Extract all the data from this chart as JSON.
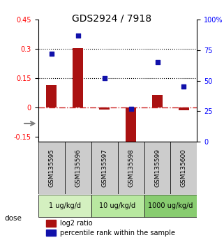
{
  "title": "GDS2924 / 7918",
  "samples": [
    "GSM135595",
    "GSM135596",
    "GSM135597",
    "GSM135598",
    "GSM135599",
    "GSM135600"
  ],
  "log2_ratio": [
    0.115,
    0.305,
    -0.01,
    -0.175,
    0.065,
    -0.015
  ],
  "percentile_rank": [
    72,
    87,
    52,
    27,
    65,
    45
  ],
  "dose_groups": [
    {
      "label": "1 ug/kg/d",
      "samples": [
        0,
        1
      ],
      "color": "#d4f0c0"
    },
    {
      "label": "10 ug/kg/d",
      "samples": [
        2,
        3
      ],
      "color": "#b8e8a0"
    },
    {
      "label": "1000 ug/kg/d",
      "samples": [
        4,
        5
      ],
      "color": "#88cc70"
    }
  ],
  "ylim_left": [
    -0.175,
    0.45
  ],
  "ylim_right": [
    0,
    100
  ],
  "yticks_left": [
    -0.15,
    0,
    0.15,
    0.3,
    0.45
  ],
  "yticks_right": [
    0,
    25,
    50,
    75,
    100
  ],
  "hlines": [
    0.15,
    0.3
  ],
  "bar_color": "#aa1111",
  "dot_color": "#1111aa",
  "bar_width": 0.4,
  "zero_line_color": "#cc2222",
  "grid_line_color": "#000000",
  "sample_box_color": "#cccccc",
  "legend_bar_label": "log2 ratio",
  "legend_dot_label": "percentile rank within the sample",
  "dose_label": "dose"
}
